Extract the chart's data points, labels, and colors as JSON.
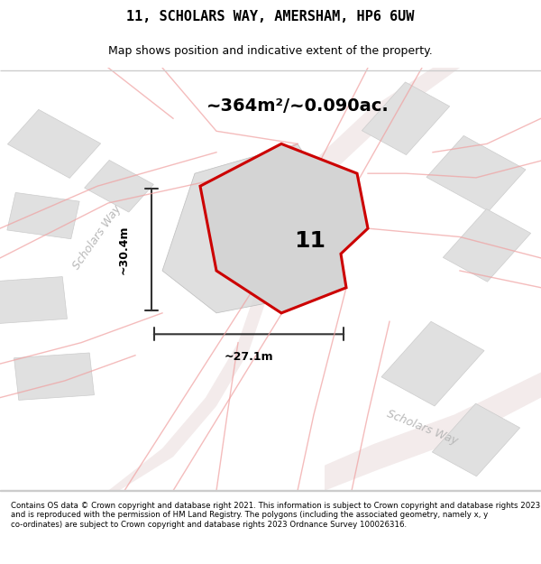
{
  "title": "11, SCHOLARS WAY, AMERSHAM, HP6 6UW",
  "subtitle": "Map shows position and indicative extent of the property.",
  "area_text": "~364m²/~0.090ac.",
  "width_label": "~27.1m",
  "height_label": "~30.4m",
  "plot_number": "11",
  "footer": "Contains OS data © Crown copyright and database right 2021. This information is subject to Crown copyright and database rights 2023 and is reproduced with the permission of HM Land Registry. The polygons (including the associated geometry, namely x, y co-ordinates) are subject to Crown copyright and database rights 2023 Ordnance Survey 100026316.",
  "bg_color": "#f5f5f5",
  "map_bg": "#f0f0f0",
  "road_color": "#e8c8c8",
  "building_color": "#e0e0e0",
  "plot_outline_color": "#cc0000",
  "plot_fill_color": "#d8d8d8",
  "dim_line_color": "#333333",
  "text_color": "#333333",
  "road_label_color": "#b0b0b0",
  "scholars_way_label": "Scholars Way",
  "scholars_way_label2": "Scholars Way"
}
